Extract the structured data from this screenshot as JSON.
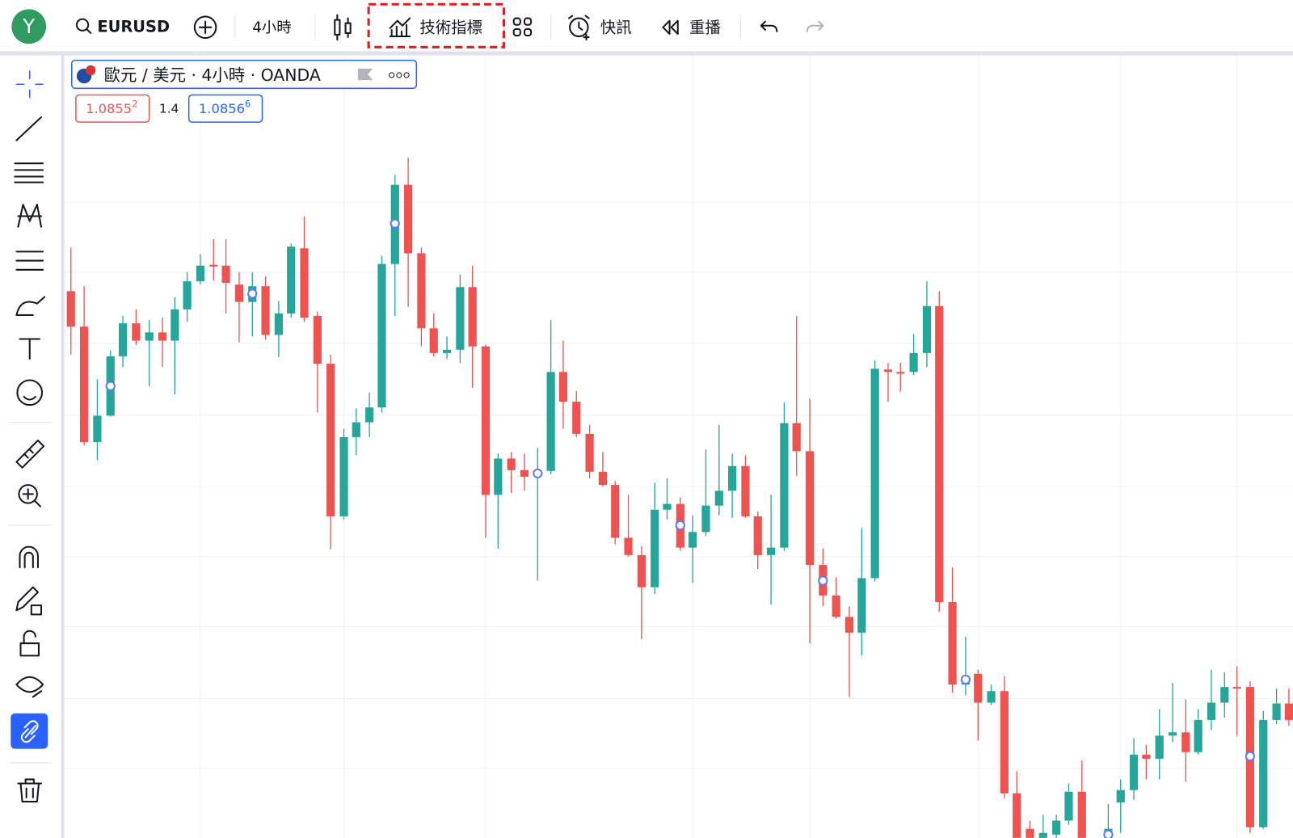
{
  "toolbar": {
    "avatar": "Y",
    "symbol": "EURUSD",
    "interval": "4小時",
    "indicators": "技術指標",
    "alerts": "快訊",
    "replay": "重播"
  },
  "legend": {
    "title": "歐元 / 美元 · 4小時 · OANDA",
    "sell": {
      "main": "1.0855",
      "sup": "2"
    },
    "spread": "1.4",
    "buy": {
      "main": "1.0856",
      "sup": "6"
    }
  }
}
